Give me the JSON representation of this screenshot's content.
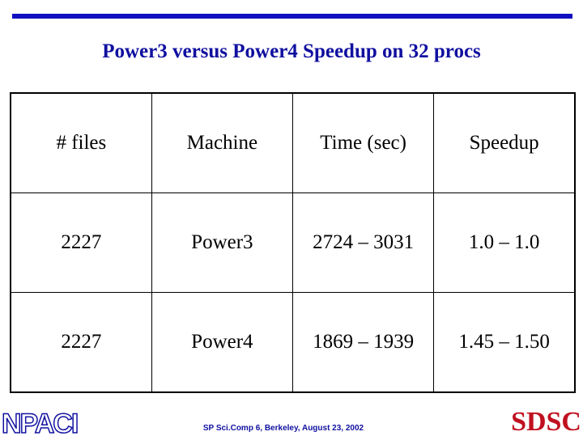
{
  "title": "Power3 versus Power4 Speedup on 32 procs",
  "table": {
    "header": [
      "# files",
      "Machine",
      "Time (sec)",
      "Speedup"
    ],
    "rows": [
      [
        "2227",
        "Power3",
        "2724 – 3031",
        "1.0 – 1.0"
      ],
      [
        "2227",
        "Power4",
        "1869 – 1939",
        "1.45 – 1.50"
      ]
    ]
  },
  "footer": "SP Sci.Comp 6, Berkeley, August 23, 2002",
  "logo_left": "NPACI",
  "logo_right": "SDSC"
}
